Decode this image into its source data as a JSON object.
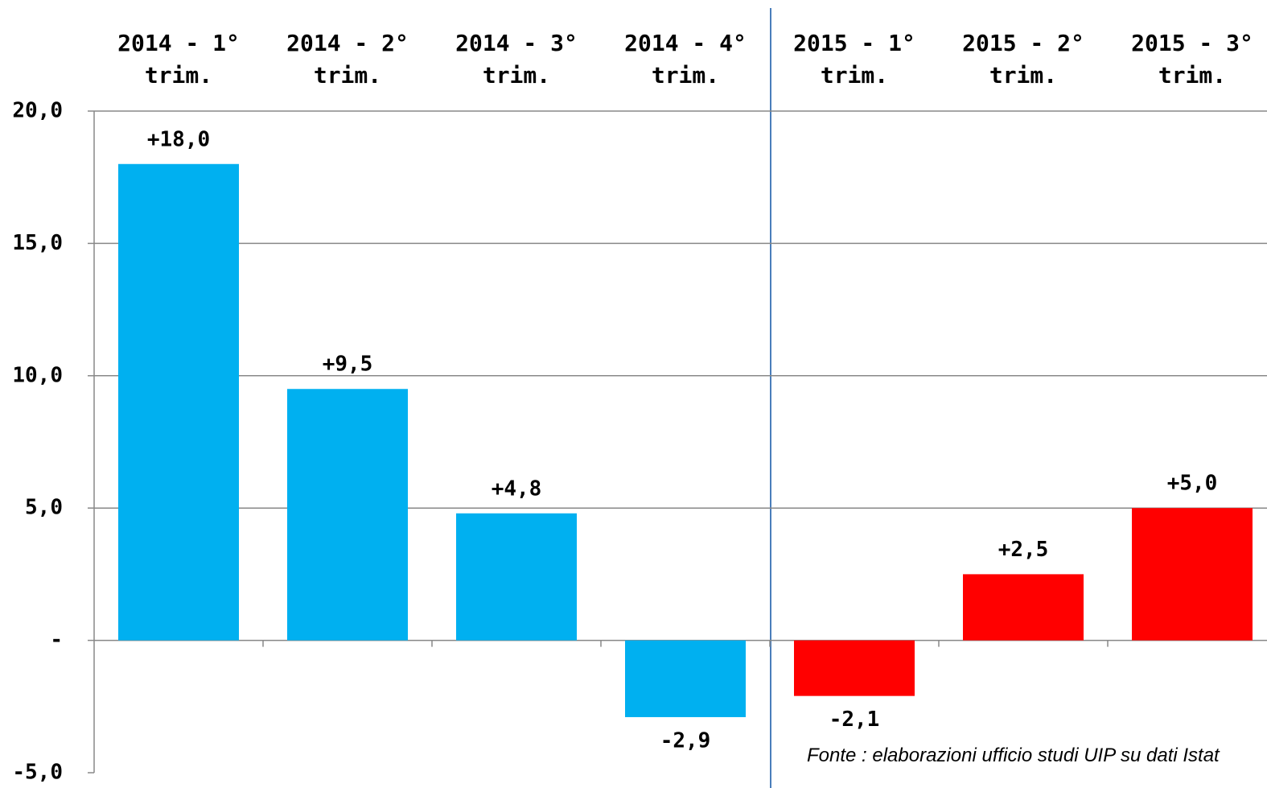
{
  "chart_data": {
    "type": "bar",
    "categories": [
      "2014 - 1° trim.",
      "2014 - 2° trim.",
      "2014 - 3° trim.",
      "2014 - 4° trim.",
      "2015 - 1° trim.",
      "2015 - 2° trim.",
      "2015 - 3° trim."
    ],
    "values": [
      18.0,
      9.5,
      4.8,
      -2.9,
      -2.1,
      2.5,
      5.0
    ],
    "value_labels": [
      "+18,0",
      "+9,5",
      "+4,8",
      "-2,9",
      "-2,1",
      "+2,5",
      "+5,0"
    ],
    "colors": [
      "#00b0f0",
      "#00b0f0",
      "#00b0f0",
      "#00b0f0",
      "#ff0000",
      "#ff0000",
      "#ff0000"
    ],
    "ylim": [
      -5,
      20
    ],
    "yticks": [
      {
        "value": -5,
        "label": "-5,0"
      },
      {
        "value": 0,
        "label": "-"
      },
      {
        "value": 5,
        "label": "5,0"
      },
      {
        "value": 10,
        "label": "10,0"
      },
      {
        "value": 15,
        "label": "15,0"
      },
      {
        "value": 20,
        "label": "20,0"
      }
    ],
    "grid": true,
    "source": "Fonte : elaborazioni  ufficio studi UIP su dati Istat"
  }
}
